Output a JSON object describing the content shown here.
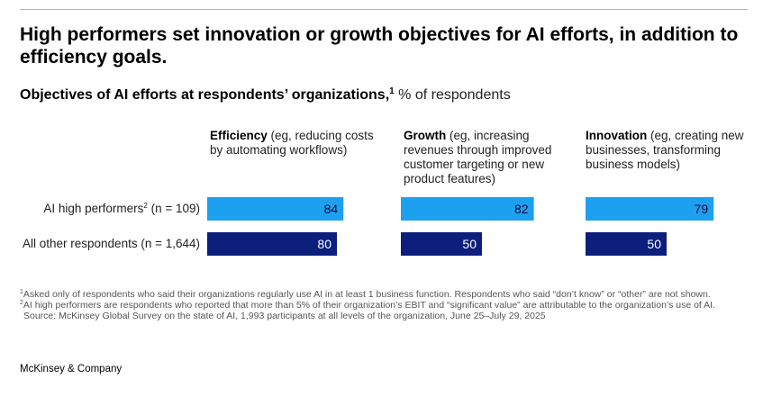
{
  "headline": "High performers set innovation or growth objectives for AI efforts, in addition to efficiency goals.",
  "subtitle": {
    "bold": "Objectives of AI efforts at respondents’ organizations,",
    "sup": "1",
    "unit": " % of respondents"
  },
  "chart_data": {
    "type": "bar",
    "orientation": "horizontal",
    "title": "Objectives of AI efforts at respondents’ organizations",
    "unit": "% of respondents",
    "xlim": [
      0,
      100
    ],
    "categories": [
      {
        "name": "Efficiency",
        "desc": " (eg, reducing costs by automating workflows)"
      },
      {
        "name": "Growth",
        "desc": " (eg, increasing revenues through improved customer targeting or new product features)"
      },
      {
        "name": "Innovation",
        "desc": " (eg, creating new businesses, transforming business models)"
      }
    ],
    "series": [
      {
        "name": "AI high performers",
        "sup": "2",
        "suffix": " (n = 109)",
        "color": "#1ea0f0",
        "values": [
          84,
          82,
          79
        ]
      },
      {
        "name": "All other respondents",
        "sup": "",
        "suffix": " (n = 1,644)",
        "color": "#0c1f7a",
        "values": [
          80,
          50,
          50
        ]
      }
    ]
  },
  "footnotes": {
    "fn1_mark": "1",
    "fn1": "Asked only of respondents who said their organizations regularly use AI in at least 1 business function. Respondents who said “don’t know” or “other” are not shown.",
    "fn2_mark": "2",
    "fn2": "AI high performers are respondents who reported that more than 5% of their organization’s EBIT and “significant value” are attributable to the organization’s use of AI.",
    "source": "Source: McKinsey Global Survey on the state of AI, 1,993 participants at all levels of the organization, June 25–July 29, 2025"
  },
  "brand": "McKinsey & Company"
}
